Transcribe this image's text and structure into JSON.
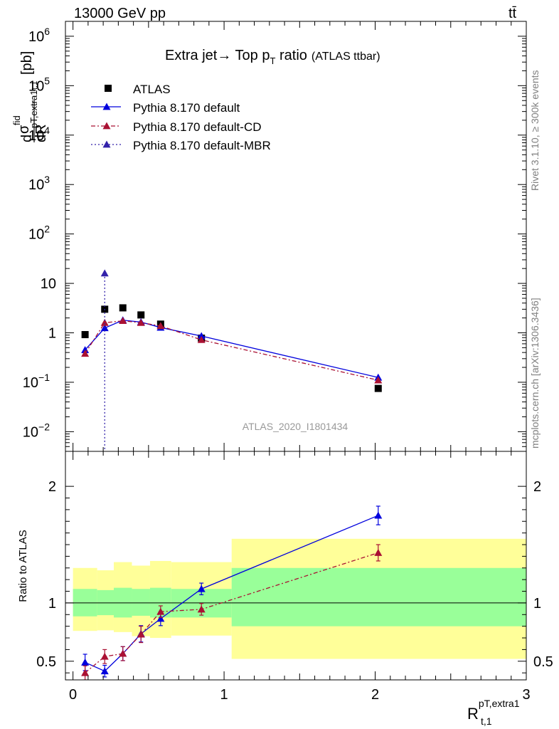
{
  "header": {
    "beam": "13000 GeV pp",
    "process": "tt̄"
  },
  "side": {
    "rivet": "Rivet 3.1.10, ≥ 300k events",
    "mcplots": "mcplots.cern.ch [arXiv:1306.3436]"
  },
  "chart_data": [
    {
      "type": "scatter",
      "panel": "main",
      "title_main": "Extra jet→ Top p",
      "title_sub": "T",
      "title_tail": " ratio",
      "title_small": "(ATLAS ttbar)",
      "analysis_id": "ATLAS_2020_I1801434",
      "ylabel": "dσ^fid / dR_{t,1}^{pT,extra1} [pb]",
      "ylabel_parts": {
        "d1": "d",
        "sigma": "σ",
        "fid": "fid",
        "sub": "t,1",
        "ptextra": "pT,extra1",
        "dR": "dR",
        "unit": "[pb]"
      },
      "yscale": "log",
      "ylim": [
        0.004,
        2000000
      ],
      "xlim": [
        -0.05,
        3.0
      ],
      "y_ticks": [
        {
          "v": 0.01,
          "label": "10",
          "exp": "−2"
        },
        {
          "v": 0.1,
          "label": "10",
          "exp": "−1"
        },
        {
          "v": 1,
          "label": "1",
          "exp": ""
        },
        {
          "v": 10,
          "label": "10",
          "exp": ""
        },
        {
          "v": 100,
          "label": "10",
          "exp": "2"
        },
        {
          "v": 1000,
          "label": "10",
          "exp": "3"
        },
        {
          "v": 10000,
          "label": "10",
          "exp": "4"
        },
        {
          "v": 100000,
          "label": "10",
          "exp": "5"
        },
        {
          "v": 1000000,
          "label": "10",
          "exp": "6"
        }
      ],
      "legend_position": "top-left",
      "series": [
        {
          "name": "ATLAS",
          "color": "#000000",
          "marker": "square",
          "style": "none",
          "x": [
            0.08,
            0.21,
            0.33,
            0.45,
            0.58,
            0.85,
            2.02
          ],
          "y": [
            0.92,
            3.0,
            3.2,
            2.3,
            1.5,
            0.78,
            0.075
          ]
        },
        {
          "name": "Pythia 8.170 default",
          "color": "#0000dd",
          "marker": "triangle",
          "style": "solid",
          "x": [
            0.08,
            0.21,
            0.33,
            0.45,
            0.58,
            0.85,
            2.02
          ],
          "y": [
            0.45,
            1.25,
            1.8,
            1.65,
            1.28,
            0.86,
            0.125
          ]
        },
        {
          "name": "Pythia 8.170 default-CD",
          "color": "#aa1133",
          "marker": "triangle",
          "style": "dashdot",
          "x": [
            0.08,
            0.21,
            0.33,
            0.45,
            0.58,
            0.85,
            2.02
          ],
          "y": [
            0.38,
            1.6,
            1.75,
            1.6,
            1.38,
            0.72,
            0.11
          ]
        },
        {
          "name": "Pythia 8.170 default-MBR",
          "color": "#3322aa",
          "marker": "triangle",
          "style": "dotted",
          "x": [
            0.21,
            0.21
          ],
          "y": [
            16,
            0.004
          ]
        }
      ]
    },
    {
      "type": "line",
      "panel": "ratio",
      "ylabel": "Ratio to ATLAS",
      "xlabel_main": "R",
      "xlabel_sub": "t,1",
      "xlabel_sup": "pT,extra1",
      "ylim": [
        0.34,
        2.3
      ],
      "xlim": [
        -0.05,
        3.0
      ],
      "y_ticks": [
        0.5,
        1,
        2
      ],
      "x_ticks": [
        0,
        1,
        2,
        3
      ],
      "bands": {
        "bins": [
          [
            0.0,
            0.16
          ],
          [
            0.16,
            0.27
          ],
          [
            0.27,
            0.39
          ],
          [
            0.39,
            0.51
          ],
          [
            0.51,
            0.65
          ],
          [
            0.65,
            1.05
          ],
          [
            1.05,
            3.0
          ]
        ],
        "stat_lo": [
          0.885,
          0.895,
          0.875,
          0.89,
          0.875,
          0.875,
          0.8
        ],
        "stat_hi": [
          1.12,
          1.11,
          1.13,
          1.12,
          1.13,
          1.12,
          1.3
        ],
        "total_lo": [
          0.76,
          0.765,
          0.75,
          0.715,
          0.7,
          0.72,
          0.52
        ],
        "total_hi": [
          1.3,
          1.28,
          1.35,
          1.32,
          1.36,
          1.35,
          1.55
        ],
        "stat_color": "#99ff99",
        "total_color": "#ffff99"
      },
      "series": [
        {
          "name": "Pythia 8.170 default",
          "color": "#0000dd",
          "style": "solid",
          "x": [
            0.08,
            0.21,
            0.33,
            0.45,
            0.58,
            0.85,
            2.02
          ],
          "y": [
            0.49,
            0.415,
            0.565,
            0.735,
            0.865,
            1.12,
            1.75
          ],
          "err": [
            0.07,
            0.05,
            0.06,
            0.07,
            0.06,
            0.05,
            0.08
          ]
        },
        {
          "name": "Pythia 8.170 default-CD",
          "color": "#aa1133",
          "style": "dashdot",
          "x": [
            0.08,
            0.21,
            0.33,
            0.45,
            0.58,
            0.85,
            2.02
          ],
          "y": [
            0.4,
            0.54,
            0.565,
            0.73,
            0.925,
            0.945,
            1.43
          ],
          "err": [
            0.06,
            0.06,
            0.06,
            0.07,
            0.05,
            0.05,
            0.07
          ]
        }
      ]
    }
  ]
}
